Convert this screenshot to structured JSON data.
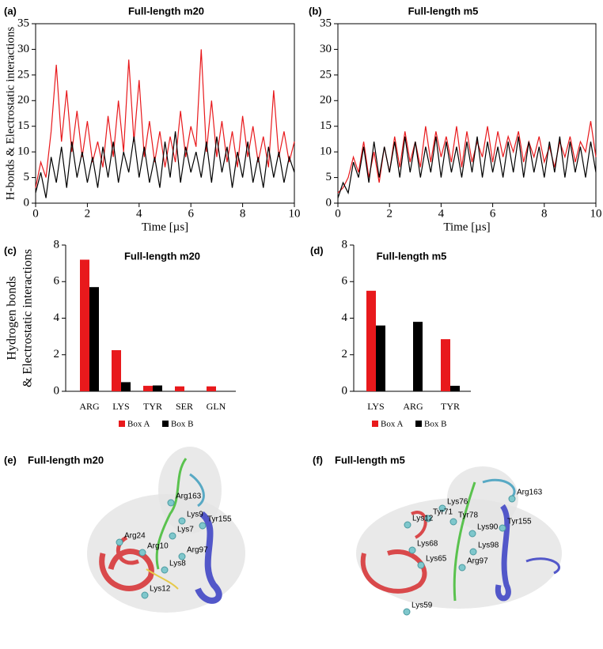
{
  "chart_data": [
    {
      "type": "line",
      "panel": "(a)",
      "title": "Full-length m20",
      "xlabel": "Time [µs]",
      "ylabel": "H-bonds & Electrostatic interactions",
      "x": [
        0,
        0.2,
        0.4,
        0.6,
        0.8,
        1,
        1.2,
        1.4,
        1.6,
        1.8,
        2,
        2.2,
        2.4,
        2.6,
        2.8,
        3,
        3.2,
        3.4,
        3.6,
        3.8,
        4,
        4.2,
        4.4,
        4.6,
        4.8,
        5,
        5.2,
        5.4,
        5.6,
        5.8,
        6,
        6.2,
        6.4,
        6.6,
        6.8,
        7,
        7.2,
        7.4,
        7.6,
        7.8,
        8,
        8.2,
        8.4,
        8.6,
        8.8,
        9,
        9.2,
        9.4,
        9.6,
        9.8,
        10
      ],
      "series": [
        {
          "color": "#e8191c",
          "values": [
            3,
            8,
            5,
            14,
            27,
            12,
            22,
            10,
            18,
            9,
            16,
            8,
            12,
            7,
            17,
            9,
            20,
            10,
            28,
            12,
            24,
            9,
            16,
            8,
            14,
            7,
            13,
            8,
            18,
            9,
            15,
            11,
            30,
            10,
            20,
            9,
            16,
            8,
            14,
            7,
            17,
            9,
            15,
            8,
            13,
            7,
            22,
            9,
            14,
            8,
            12
          ]
        },
        {
          "color": "#000000",
          "values": [
            2,
            6,
            1,
            9,
            4,
            11,
            3,
            12,
            5,
            10,
            4,
            9,
            3,
            11,
            5,
            12,
            4,
            10,
            6,
            13,
            5,
            11,
            4,
            9,
            3,
            12,
            5,
            14,
            4,
            11,
            6,
            10,
            5,
            12,
            4,
            13,
            6,
            11,
            3,
            10,
            5,
            12,
            4,
            9,
            3,
            11,
            5,
            10,
            4,
            9,
            6
          ]
        }
      ],
      "xlim": [
        0,
        10
      ],
      "xticks": [
        0,
        2,
        4,
        6,
        8,
        10
      ],
      "ylim": [
        0,
        35
      ],
      "yticks": [
        0,
        5,
        10,
        15,
        20,
        25,
        30,
        35
      ]
    },
    {
      "type": "line",
      "panel": "(b)",
      "title": "Full-length m5",
      "xlabel": "Time [µs]",
      "x": [
        0,
        0.2,
        0.4,
        0.6,
        0.8,
        1,
        1.2,
        1.4,
        1.6,
        1.8,
        2,
        2.2,
        2.4,
        2.6,
        2.8,
        3,
        3.2,
        3.4,
        3.6,
        3.8,
        4,
        4.2,
        4.4,
        4.6,
        4.8,
        5,
        5.2,
        5.4,
        5.6,
        5.8,
        6,
        6.2,
        6.4,
        6.6,
        6.8,
        7,
        7.2,
        7.4,
        7.6,
        7.8,
        8,
        8.2,
        8.4,
        8.6,
        8.8,
        9,
        9.2,
        9.4,
        9.6,
        9.8,
        10
      ],
      "series": [
        {
          "color": "#e8191c",
          "values": [
            2,
            3,
            5,
            9,
            6,
            12,
            5,
            10,
            4,
            11,
            6,
            13,
            7,
            14,
            8,
            12,
            7,
            15,
            8,
            14,
            9,
            13,
            8,
            15,
            7,
            14,
            8,
            12,
            9,
            15,
            8,
            14,
            9,
            13,
            10,
            14,
            8,
            12,
            9,
            13,
            8,
            11,
            7,
            12,
            9,
            13,
            8,
            12,
            10,
            16,
            9
          ]
        },
        {
          "color": "#000000",
          "values": [
            1,
            4,
            2,
            8,
            5,
            11,
            4,
            12,
            5,
            11,
            6,
            12,
            5,
            13,
            6,
            12,
            5,
            11,
            6,
            13,
            5,
            12,
            6,
            11,
            5,
            12,
            6,
            13,
            5,
            12,
            6,
            11,
            5,
            12,
            6,
            13,
            5,
            12,
            6,
            11,
            5,
            12,
            6,
            13,
            5,
            12,
            6,
            11,
            5,
            12,
            6
          ]
        }
      ],
      "xlim": [
        0,
        10
      ],
      "xticks": [
        0,
        2,
        4,
        6,
        8,
        10
      ],
      "ylim": [
        0,
        35
      ],
      "yticks": [
        0,
        5,
        10,
        15,
        20,
        25,
        30,
        35
      ]
    },
    {
      "type": "bar",
      "panel": "(c)",
      "title": "Full-length m20",
      "ylabel": [
        "Hydrogen bonds",
        "& Electrostatic interactions"
      ],
      "categories": [
        "ARG",
        "LYS",
        "TYR",
        "SER",
        "GLN"
      ],
      "series": [
        {
          "name": "Box A",
          "color": "#e8191c",
          "values": [
            7.2,
            2.25,
            0.3,
            0.27,
            0.27
          ]
        },
        {
          "name": "Box B",
          "color": "#000000",
          "values": [
            5.7,
            0.5,
            0.32,
            0,
            0
          ]
        }
      ],
      "ylim": [
        0,
        8
      ],
      "yticks": [
        0,
        2,
        4,
        6,
        8
      ]
    },
    {
      "type": "bar",
      "panel": "(d)",
      "title": "Full-length m5",
      "categories": [
        "LYS",
        "ARG",
        "TYR"
      ],
      "series": [
        {
          "name": "Box A",
          "color": "#e8191c",
          "values": [
            5.5,
            0,
            2.85
          ]
        },
        {
          "name": "Box B",
          "color": "#000000",
          "values": [
            3.6,
            3.8,
            0.3
          ]
        }
      ],
      "ylim": [
        0,
        8
      ],
      "yticks": [
        0,
        2,
        4,
        6,
        8
      ]
    }
  ],
  "structures": [
    {
      "panel": "(e)",
      "title": "Full-length m20",
      "labels": [
        "Arg163",
        "Lys9",
        "Tyr155",
        "Lys7",
        "Arg24",
        "Arg10",
        "Arg97",
        "Lys8",
        "Lys12"
      ]
    },
    {
      "panel": "(f)",
      "title": "Full-length m5",
      "labels": [
        "Arg163",
        "Lys76",
        "Tyr71",
        "Tyr78",
        "Lys12",
        "Tyr155",
        "Lys90",
        "Lys68",
        "Lys98",
        "Arg97",
        "Lys65",
        "Lys59"
      ]
    }
  ]
}
